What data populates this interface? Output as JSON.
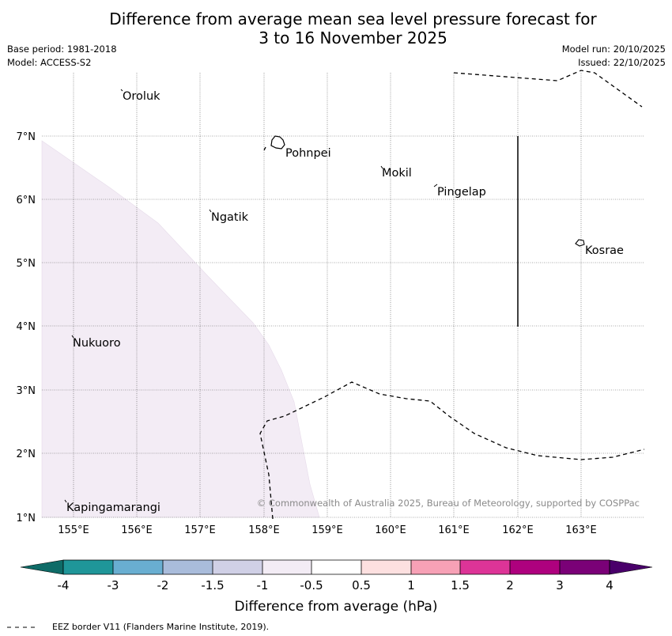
{
  "header": {
    "title_line1": "Difference from average mean sea level pressure forecast for",
    "title_line2": "3 to 16 November 2025",
    "base_period": "Base period: 1981-2018",
    "model": "Model: ACCESS-S2",
    "model_run": "Model run: 20/10/2025",
    "issued": "Issued: 22/10/2025"
  },
  "map": {
    "lon_labels": [
      "155°E",
      "156°E",
      "157°E",
      "158°E",
      "159°E",
      "160°E",
      "161°E",
      "162°E",
      "163°E"
    ],
    "lat_labels": [
      "7°N",
      "6°N",
      "5°N",
      "4°N",
      "3°N",
      "2°N",
      "1°N"
    ],
    "places": [
      "Oroluk",
      "Pohnpei",
      "Mokil",
      "Pingelap",
      "Ngatik",
      "Kosrae",
      "Nukuoro",
      "Kapingamarangi"
    ],
    "credit": "© Commonwealth of Australia 2025, Bureau of Meteorology, supported by COSPPac",
    "shading_color": "#f3ecf5"
  },
  "colorbar": {
    "ticks": [
      "-4",
      "-3",
      "-2",
      "-1.5",
      "-1",
      "-0.5",
      "0.5",
      "1",
      "1.5",
      "2",
      "3",
      "4"
    ],
    "colors": [
      "#0e6b67",
      "#1f9699",
      "#69aed1",
      "#a9bcdb",
      "#d0d0e6",
      "#f3ecf5",
      "#ffffff",
      "#fde0e0",
      "#f7a1b6",
      "#dd3497",
      "#ae017e",
      "#7a0177",
      "#49006a"
    ],
    "label": "Difference from average (hPa)"
  },
  "footer": {
    "legend_text": "EEZ border V11 (Flanders Marine Institute, 2019)."
  }
}
